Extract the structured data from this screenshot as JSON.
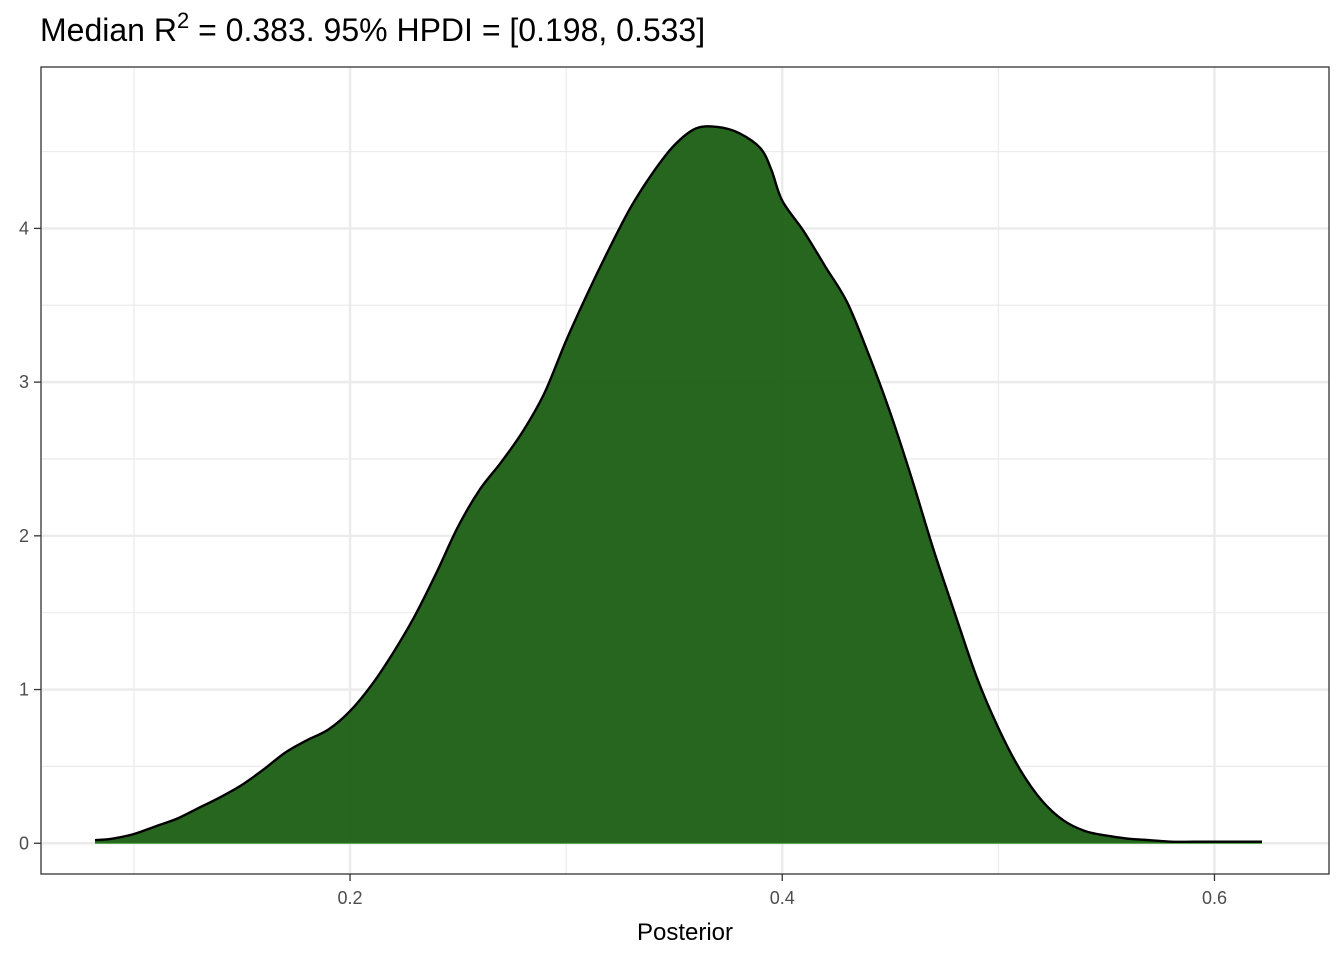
{
  "title": {
    "prefix": "Median R",
    "superscript": "2",
    "suffix": " = 0.383. 95% HPDI = [0.198, 0.533]"
  },
  "colors": {
    "fill": "#1a5e13",
    "outline": "#000000",
    "grid": "#ebebeb",
    "panel_border": "#333333",
    "tick_text": "#4d4d4d"
  },
  "chart_data": {
    "type": "area",
    "title": "Median R² = 0.383. 95% HPDI = [0.198, 0.533]",
    "xlabel": "Posterior",
    "ylabel": "",
    "xlim": [
      0.057,
      0.653
    ],
    "ylim": [
      -0.2,
      5.05
    ],
    "x_ticks": [
      0.2,
      0.4,
      0.6
    ],
    "x_tick_labels": [
      "0.2",
      "0.4",
      "0.6"
    ],
    "y_ticks": [
      0,
      1,
      2,
      3,
      4
    ],
    "y_tick_labels": [
      "0",
      "1",
      "2",
      "3",
      "4"
    ],
    "grid": true,
    "legend": "none",
    "series": [
      {
        "x": [
          0.082,
          0.09,
          0.1,
          0.11,
          0.12,
          0.13,
          0.14,
          0.15,
          0.16,
          0.17,
          0.18,
          0.19,
          0.2,
          0.21,
          0.22,
          0.23,
          0.24,
          0.25,
          0.26,
          0.27,
          0.28,
          0.29,
          0.3,
          0.31,
          0.32,
          0.33,
          0.34,
          0.35,
          0.36,
          0.37,
          0.38,
          0.39,
          0.395,
          0.4,
          0.41,
          0.42,
          0.43,
          0.44,
          0.45,
          0.46,
          0.47,
          0.48,
          0.49,
          0.5,
          0.51,
          0.52,
          0.53,
          0.54,
          0.55,
          0.56,
          0.57,
          0.58,
          0.59,
          0.6,
          0.61,
          0.622
        ],
        "y": [
          0.02,
          0.03,
          0.06,
          0.11,
          0.16,
          0.23,
          0.3,
          0.38,
          0.48,
          0.59,
          0.67,
          0.74,
          0.86,
          1.03,
          1.24,
          1.48,
          1.76,
          2.06,
          2.3,
          2.48,
          2.68,
          2.93,
          3.27,
          3.58,
          3.87,
          4.14,
          4.36,
          4.54,
          4.65,
          4.66,
          4.62,
          4.52,
          4.38,
          4.18,
          3.98,
          3.75,
          3.52,
          3.18,
          2.8,
          2.37,
          1.91,
          1.49,
          1.08,
          0.75,
          0.48,
          0.28,
          0.15,
          0.08,
          0.05,
          0.03,
          0.02,
          0.01,
          0.01,
          0.01,
          0.01,
          0.01
        ]
      }
    ]
  }
}
